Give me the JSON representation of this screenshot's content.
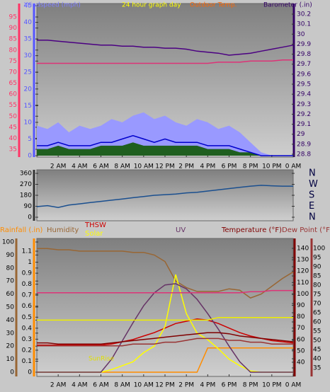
{
  "chart_data": [
    {
      "type": "line",
      "title": "24 hour graph day",
      "ylabel": "Windspeed (mph)",
      "y3label": "Outdoor Temp.",
      "y2label": "Barometer (.in)",
      "x": [
        0,
        1,
        2,
        3,
        4,
        5,
        6,
        7,
        8,
        9,
        10,
        11,
        12,
        13,
        14,
        15,
        16,
        17,
        18,
        19,
        20,
        21,
        22,
        23,
        24
      ],
      "xlim": [
        0,
        24
      ],
      "xticks": [
        {
          "value": 2,
          "label": "2 AM"
        },
        {
          "value": 4,
          "label": "4 AM"
        },
        {
          "value": 6,
          "label": "6 AM"
        },
        {
          "value": 8,
          "label": "8 AM"
        },
        {
          "value": 10,
          "label": "10 AM"
        },
        {
          "value": 12,
          "label": "12 PM"
        },
        {
          "value": 14,
          "label": "2 PM"
        },
        {
          "value": 16,
          "label": "4 PM"
        },
        {
          "value": 18,
          "label": "6 PM"
        },
        {
          "value": 20,
          "label": "8 PM"
        },
        {
          "value": 22,
          "label": "10 PM"
        },
        {
          "value": 24,
          "label": "0 AM"
        }
      ],
      "ylim": [
        0,
        45
      ],
      "yticks": [
        0,
        5,
        10,
        15,
        20,
        25,
        30,
        35,
        40,
        45
      ],
      "y2lim": [
        28.8,
        30.2
      ],
      "y2ticks": [
        28.8,
        28.9,
        29,
        29.1,
        29.2,
        29.3,
        29.4,
        29.5,
        29.6,
        29.7,
        29.8,
        29.9,
        30,
        30.1,
        30.2
      ],
      "y3lim": [
        35,
        95
      ],
      "y3ticks": [
        35,
        40,
        45,
        50,
        55,
        60,
        65,
        70,
        75,
        80,
        85,
        90,
        95
      ],
      "series": [
        {
          "color": "#9999ff",
          "area": true,
          "values": [
            9,
            8,
            10,
            7,
            9,
            8,
            9,
            11,
            10,
            12,
            13,
            11,
            12,
            10,
            9,
            11,
            10,
            8,
            9,
            7,
            4,
            1,
            0,
            0,
            0
          ]
        },
        {
          "color": "#1f5f1f",
          "area": true,
          "values": [
            2,
            2,
            3,
            2,
            2,
            2,
            3,
            3,
            3,
            4,
            3,
            3,
            3,
            3,
            3,
            3,
            2,
            2,
            2,
            1,
            1,
            0,
            0,
            0,
            0
          ]
        },
        {
          "color": "#0000cc",
          "values": [
            3,
            3,
            4,
            3,
            3,
            3,
            4,
            4,
            5,
            6,
            5,
            4,
            5,
            4,
            4,
            4,
            3,
            3,
            3,
            2,
            1,
            0,
            0,
            0,
            0
          ]
        },
        {
          "color": "#dd3377",
          "axis": "y3",
          "values": [
            74,
            74,
            74,
            74,
            74,
            74,
            74,
            74,
            74,
            74,
            74,
            74,
            74,
            74,
            74,
            74,
            74,
            74.5,
            74.5,
            74.5,
            75,
            75,
            75,
            75.5,
            75.5
          ]
        },
        {
          "color": "#4b0082",
          "axis": "y2",
          "values": [
            29.94,
            29.94,
            29.93,
            29.92,
            29.91,
            29.9,
            29.89,
            29.89,
            29.88,
            29.88,
            29.87,
            29.87,
            29.86,
            29.86,
            29.85,
            29.83,
            29.82,
            29.81,
            29.79,
            29.8,
            29.81,
            29.83,
            29.85,
            29.87,
            29.89
          ]
        }
      ]
    },
    {
      "type": "line",
      "x": [
        0,
        1,
        2,
        3,
        4,
        5,
        6,
        7,
        8,
        9,
        10,
        11,
        12,
        13,
        14,
        15,
        16,
        17,
        18,
        19,
        20,
        21,
        22,
        23,
        24
      ],
      "xlim": [
        0,
        24
      ],
      "ylim": [
        0,
        360
      ],
      "yticks": [
        0,
        90,
        180,
        270,
        360
      ],
      "y2lim": [
        0,
        360
      ],
      "y2ticks": [
        {
          "value": 360,
          "label": "N"
        },
        {
          "value": 270,
          "label": "W"
        },
        {
          "value": 180,
          "label": "S"
        },
        {
          "value": 90,
          "label": "E"
        },
        {
          "value": 0,
          "label": "N"
        }
      ],
      "series": [
        {
          "color": "#1a4f8f",
          "values": [
            87,
            95,
            80,
            100,
            110,
            120,
            130,
            140,
            150,
            160,
            170,
            180,
            185,
            190,
            200,
            205,
            215,
            225,
            235,
            245,
            255,
            262,
            258,
            255,
            255
          ]
        }
      ]
    },
    {
      "type": "line",
      "annotation": "SunRise",
      "x": [
        0,
        1,
        2,
        3,
        4,
        5,
        6,
        7,
        8,
        9,
        10,
        11,
        12,
        13,
        14,
        15,
        16,
        17,
        18,
        19,
        20,
        21,
        22,
        23,
        24
      ],
      "xlim": [
        0,
        24
      ],
      "xticks": [
        {
          "value": 2,
          "label": "2 AM"
        },
        {
          "value": 4,
          "label": "4 AM"
        },
        {
          "value": 6,
          "label": "6 AM"
        },
        {
          "value": 8,
          "label": "8 AM"
        },
        {
          "value": 10,
          "label": "10 AM"
        },
        {
          "value": 12,
          "label": "12 PM"
        },
        {
          "value": 14,
          "label": "2 PM"
        },
        {
          "value": 16,
          "label": "4 PM"
        },
        {
          "value": 18,
          "label": "6 PM"
        },
        {
          "value": 20,
          "label": "8 PM"
        },
        {
          "value": 22,
          "label": "10 PM"
        },
        {
          "value": 24,
          "label": "0 AM"
        }
      ],
      "ylim": [
        0,
        100
      ],
      "yticks": [
        0,
        10,
        20,
        30,
        40,
        50,
        60,
        70,
        80,
        90,
        100
      ],
      "y2lim": [
        0,
        1.1
      ],
      "y2ticks": [
        0,
        0.1,
        0.2,
        0.3,
        0.4,
        0.5,
        0.6,
        0.7,
        0.8,
        0.9,
        1,
        1.1
      ],
      "y3lim": [
        35,
        140
      ],
      "y3ticks": [
        40,
        50,
        60,
        70,
        80,
        90,
        100,
        110,
        120,
        130,
        140
      ],
      "y4lim": [
        35,
        100
      ],
      "y4ticks": [
        35,
        40,
        45,
        50,
        55,
        60,
        65,
        70,
        75,
        80,
        85,
        90,
        95,
        100
      ],
      "series": [
        {
          "name": "Rainfall (.in)",
          "color": "#ff8c00",
          "axis": "y2",
          "values": [
            0,
            0,
            0,
            0,
            0,
            0,
            0,
            0,
            0,
            0,
            0,
            0,
            0,
            0,
            0,
            0,
            0.22,
            0.22,
            0.22,
            0.22,
            0.22,
            0.22,
            0.22,
            0.22,
            0.22
          ]
        },
        {
          "name": "Humidity",
          "color": "#996633",
          "values": [
            95,
            95,
            94,
            94,
            93,
            93,
            93,
            93,
            93,
            92,
            92,
            90,
            85,
            70,
            65,
            62,
            62,
            62,
            64,
            63,
            57,
            60,
            66,
            72,
            77
          ]
        },
        {
          "name": "THSW",
          "color": "#cc0000",
          "axis": "y3",
          "values": [
            55,
            55,
            55,
            55,
            55,
            55,
            55,
            56,
            58,
            60,
            63,
            66,
            70,
            74,
            76,
            78,
            77,
            74,
            70,
            66,
            63,
            61,
            59,
            58,
            57
          ]
        },
        {
          "name": "Solar",
          "color": "#ffff00",
          "values": [
            0,
            0,
            0,
            0,
            0,
            0,
            0,
            2,
            5,
            8,
            15,
            20,
            35,
            75,
            45,
            30,
            25,
            18,
            10,
            5,
            1,
            0,
            0,
            0,
            0
          ]
        },
        {
          "name": "UV",
          "color": "#663366",
          "values": [
            0,
            0,
            0,
            0,
            0,
            0,
            0,
            10,
            24,
            38,
            51,
            61,
            67,
            68,
            64,
            56,
            45,
            33,
            20,
            8,
            0,
            0,
            0,
            0,
            0
          ]
        },
        {
          "name": "Temperature (°F)",
          "color": "#800000",
          "axis": "y3",
          "values": [
            57,
            57,
            56,
            56,
            56,
            56,
            56,
            57,
            58,
            59,
            60,
            61,
            62,
            63,
            64,
            65,
            66,
            66,
            65,
            63,
            62,
            61,
            60,
            59,
            58
          ]
        },
        {
          "name": "Dew Point (°F)",
          "color": "#993333",
          "axis": "y4",
          "values": [
            47,
            47,
            47,
            47,
            47,
            47,
            47,
            47,
            47,
            48,
            48,
            48,
            49,
            49,
            50,
            51,
            51,
            51,
            50,
            50,
            49,
            49,
            48,
            48,
            48
          ]
        },
        {
          "color": "#dd3377",
          "axis": "y3",
          "values": [
            101,
            101,
            101,
            101,
            101,
            101,
            101,
            101,
            101,
            101,
            101,
            101,
            101,
            101,
            101,
            101,
            101,
            101,
            101,
            101,
            102,
            102,
            103,
            103,
            103
          ]
        },
        {
          "color": "#eeee00",
          "values": [
            40,
            40,
            40,
            40,
            40,
            40,
            40,
            40,
            40,
            40,
            40,
            40,
            40,
            40,
            40,
            40,
            40,
            42,
            42,
            42,
            42,
            42,
            42,
            42,
            42
          ]
        }
      ]
    }
  ]
}
